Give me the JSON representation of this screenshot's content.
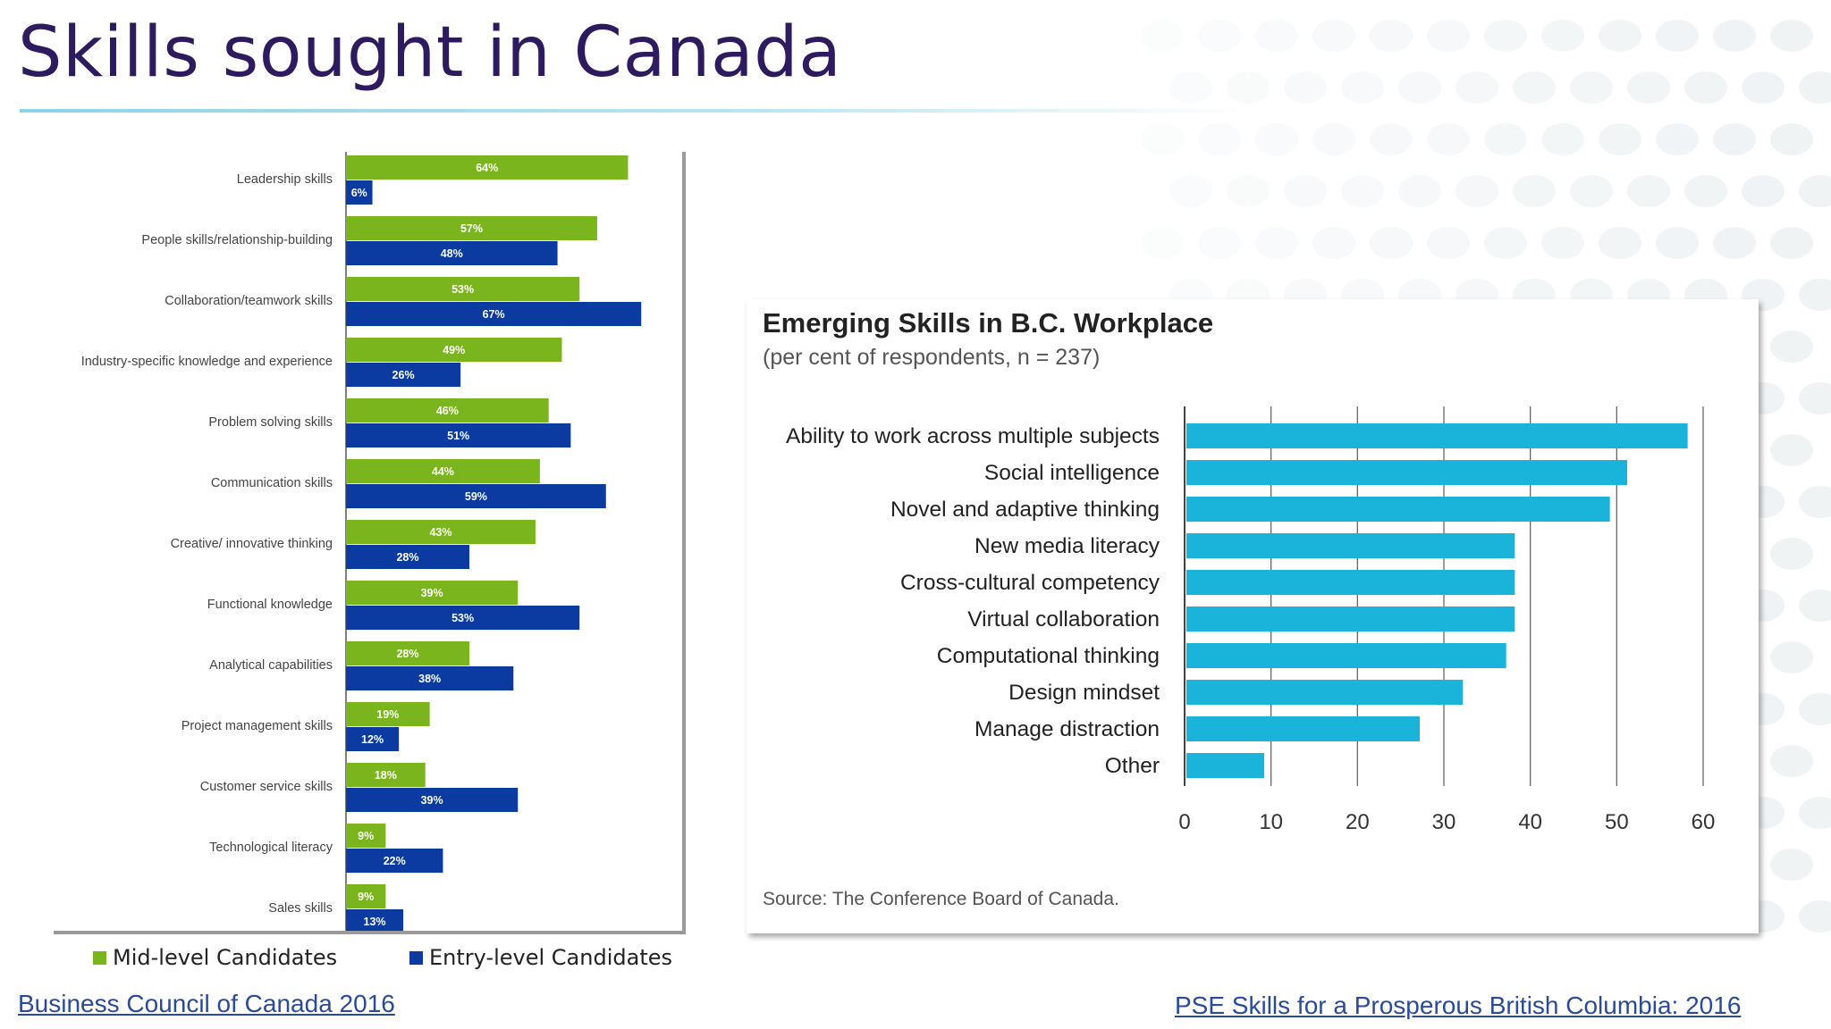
{
  "slide": {
    "title": "Skills sought in Canada",
    "left_source": "Business Council of Canada 2016",
    "right_source": "PSE Skills for a Prosperous British Columbia: 2016"
  },
  "colors": {
    "title": "#2e1a5e",
    "mid_level": "#7ab51d",
    "entry_level": "#0b3aa0",
    "emerging": "#1ab4db"
  },
  "chart_data": [
    {
      "type": "bar",
      "orientation": "horizontal",
      "title": "",
      "categories": [
        "Leadership skills",
        "People skills/relationship-building",
        "Collaboration/teamwork skills",
        "Industry-specific knowledge and experience",
        "Problem solving skills",
        "Communication skills",
        "Creative/ innovative thinking",
        "Functional knowledge",
        "Analytical capabilities",
        "Project management skills",
        "Customer service skills",
        "Technological literacy",
        "Sales skills"
      ],
      "series": [
        {
          "name": "Mid-level Candidates",
          "color": "#7ab51d",
          "values": [
            64,
            57,
            53,
            49,
            46,
            44,
            43,
            39,
            28,
            19,
            18,
            9,
            9
          ],
          "labels": [
            "64%",
            "57%",
            "53%",
            "49%",
            "46%",
            "44%",
            "43%",
            "39%",
            "28%",
            "19%",
            "18%",
            "9%",
            "9%"
          ]
        },
        {
          "name": "Entry-level Candidates",
          "color": "#0b3aa0",
          "values": [
            6,
            48,
            67,
            26,
            51,
            59,
            28,
            53,
            38,
            12,
            39,
            22,
            13
          ],
          "labels": [
            "6%",
            "48%",
            "67%",
            "26%",
            "51%",
            "59%",
            "28%",
            "53%",
            "38%",
            "12%",
            "39%",
            "22%",
            "13%"
          ]
        }
      ],
      "xlim": [
        0,
        70
      ],
      "legend": "bottom"
    },
    {
      "type": "bar",
      "orientation": "horizontal",
      "title": "Emerging Skills in B.C. Workplace",
      "subtitle": "(per cent of respondents, n = 237)",
      "categories": [
        "Ability to work across multiple subjects",
        "Social intelligence",
        "Novel and adaptive thinking",
        "New media literacy",
        "Cross-cultural competency",
        "Virtual collaboration",
        "Computational thinking",
        "Design mindset",
        "Manage distraction",
        "Other"
      ],
      "values": [
        58,
        51,
        49,
        38,
        38,
        38,
        37,
        32,
        27,
        9
      ],
      "xlim": [
        0,
        60
      ],
      "xticks": [
        "0",
        "10",
        "20",
        "30",
        "40",
        "50",
        "60"
      ],
      "grid": true,
      "source": "Source: The Conference Board of Canada."
    }
  ]
}
